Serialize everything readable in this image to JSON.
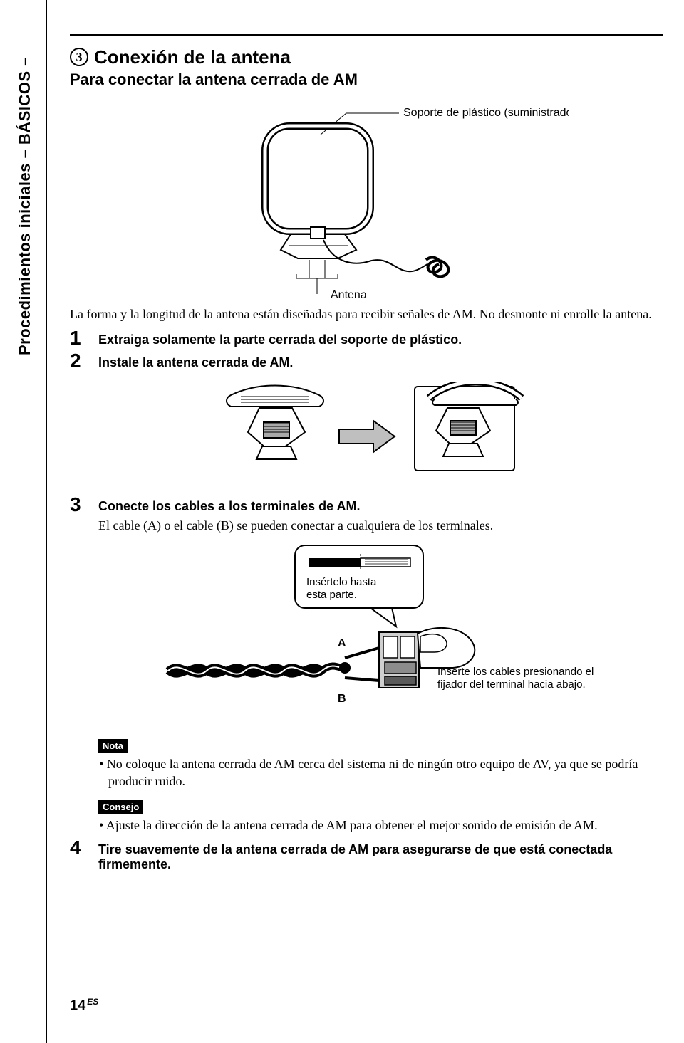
{
  "sidebar": "Procedimientos iniciales – BÁSICOS –",
  "section": {
    "number": "3",
    "title": "Conexión de la antena",
    "subtitle": "Para conectar la antena cerrada de AM"
  },
  "fig1": {
    "label_top": "Soporte de plástico (suministrado)",
    "label_bottom": "Antena"
  },
  "intro": "La forma y la longitud de la antena están diseñadas para recibir señales de AM. No desmonte ni enrolle la antena.",
  "steps": [
    {
      "n": "1",
      "title": "Extraiga solamente la parte cerrada del soporte de plástico."
    },
    {
      "n": "2",
      "title": "Instale la antena cerrada de AM."
    },
    {
      "n": "3",
      "title": "Conecte los cables a los terminales de AM.",
      "sub": "El cable (A) o el cable (B) se pueden conectar a cualquiera de los terminales."
    },
    {
      "n": "4",
      "title": "Tire suavemente de la antena cerrada de AM para asegurarse de que está conectada firmemente."
    }
  ],
  "fig3": {
    "insert_label": "Insértelo hasta esta parte.",
    "side_label": "Inserte los cables presionando el fijador del terminal hacia abajo.",
    "A": "A",
    "B": "B"
  },
  "note": {
    "tag": "Nota",
    "text": "• No coloque la antena cerrada de AM cerca del sistema ni de ningún otro equipo de AV, ya que se podría producir ruido."
  },
  "tip": {
    "tag": "Consejo",
    "text": "• Ajuste la dirección de la antena cerrada de AM para obtener el mejor sonido de emisión de AM."
  },
  "pagenum": {
    "n": "14",
    "suffix": "ES"
  },
  "colors": {
    "text": "#000000",
    "bg": "#ffffff",
    "grey": "#bfbfbf",
    "lightgrey": "#e6e6e6",
    "medgrey": "#8c8c8c"
  }
}
